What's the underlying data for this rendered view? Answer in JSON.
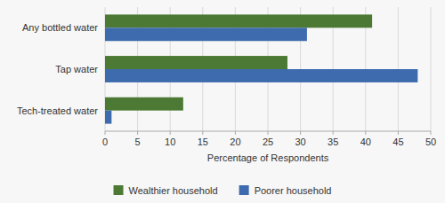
{
  "chart_data": {
    "type": "bar",
    "orientation": "horizontal",
    "categories": [
      "Any bottled water",
      "Tap water",
      "Tech-treated water"
    ],
    "series": [
      {
        "name": "Wealthier household",
        "color": "#4c7a34",
        "values": [
          41,
          28,
          12
        ]
      },
      {
        "name": "Poorer household",
        "color": "#3d6bad",
        "values": [
          31,
          48,
          1
        ]
      }
    ],
    "xlabel": "Percentage of Respondents",
    "xlim": [
      0,
      50
    ],
    "xticks": [
      0,
      5,
      10,
      15,
      20,
      25,
      30,
      35,
      40,
      45,
      50
    ],
    "grid": true,
    "legend": "bottom"
  }
}
